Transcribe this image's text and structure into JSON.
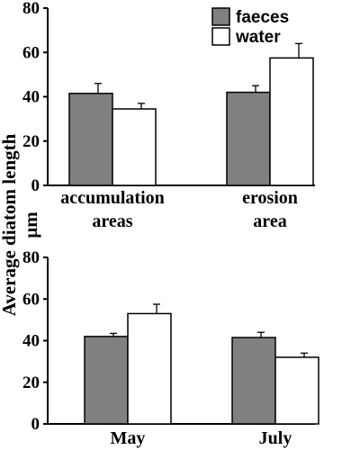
{
  "ylabel_line1": "Average diatom length",
  "ylabel_line2": "µm",
  "legend": {
    "location": "top-right",
    "entries": [
      "faeces",
      "water"
    ]
  },
  "colors": {
    "faeces": "#808080",
    "water": "#ffffff",
    "stroke": "#000000"
  },
  "chart_data": [
    {
      "type": "bar",
      "categories": [
        [
          "accumulation",
          "areas"
        ],
        [
          "erosion",
          "area"
        ]
      ],
      "series": [
        {
          "name": "faeces",
          "values": [
            41.5,
            42.0
          ],
          "errors": [
            4.5,
            3.0
          ]
        },
        {
          "name": "water",
          "values": [
            34.5,
            57.5
          ],
          "errors": [
            2.5,
            6.5
          ]
        }
      ],
      "yticks": [
        0,
        20,
        40,
        60,
        80
      ],
      "ylim": [
        0,
        80
      ],
      "grid": false
    },
    {
      "type": "bar",
      "categories": [
        [
          "May"
        ],
        [
          "July"
        ]
      ],
      "series": [
        {
          "name": "faeces",
          "values": [
            42.0,
            41.5
          ],
          "errors": [
            1.5,
            2.5
          ]
        },
        {
          "name": "water",
          "values": [
            53.0,
            32.0
          ],
          "errors": [
            4.5,
            2.0
          ]
        }
      ],
      "yticks": [
        0,
        20,
        40,
        60,
        80
      ],
      "ylim": [
        0,
        80
      ],
      "grid": false
    }
  ]
}
